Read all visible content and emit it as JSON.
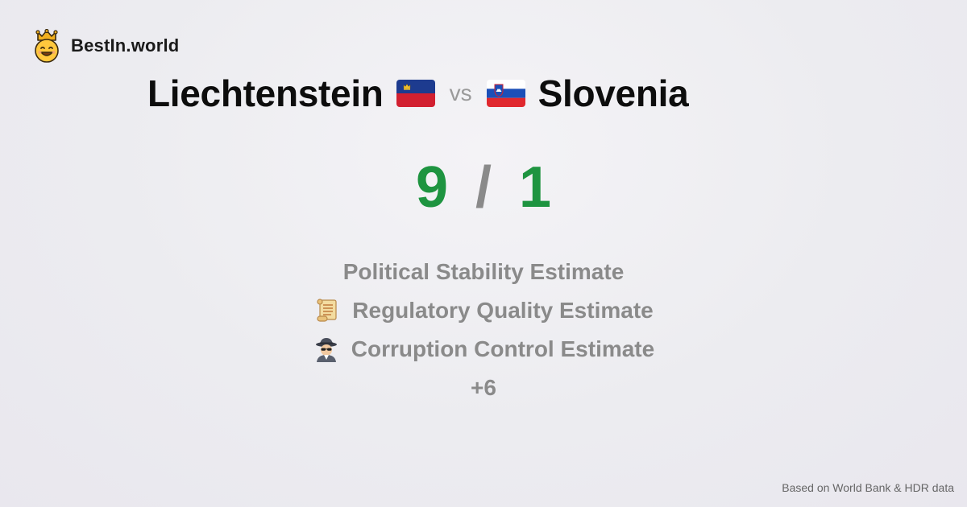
{
  "brand": {
    "name": "BestIn.world",
    "logo_icon": "smiling-crown-face-icon"
  },
  "comparison": {
    "left_country": "Liechtenstein",
    "left_flag_icon": "liechtenstein-flag-icon",
    "vs_label": "vs",
    "right_country": "Slovenia",
    "right_flag_icon": "slovenia-flag-icon"
  },
  "score": {
    "left": "9",
    "separator": "/",
    "right": "1",
    "color": "#1e9440"
  },
  "metrics": [
    {
      "label": "Political Stability Estimate",
      "icon": ""
    },
    {
      "label": "Regulatory Quality Estimate",
      "icon": "scroll-icon"
    },
    {
      "label": "Corruption Control Estimate",
      "icon": "spy-icon"
    }
  ],
  "more_label": "+6",
  "footer": {
    "source": "Based on World Bank & HDR data"
  }
}
